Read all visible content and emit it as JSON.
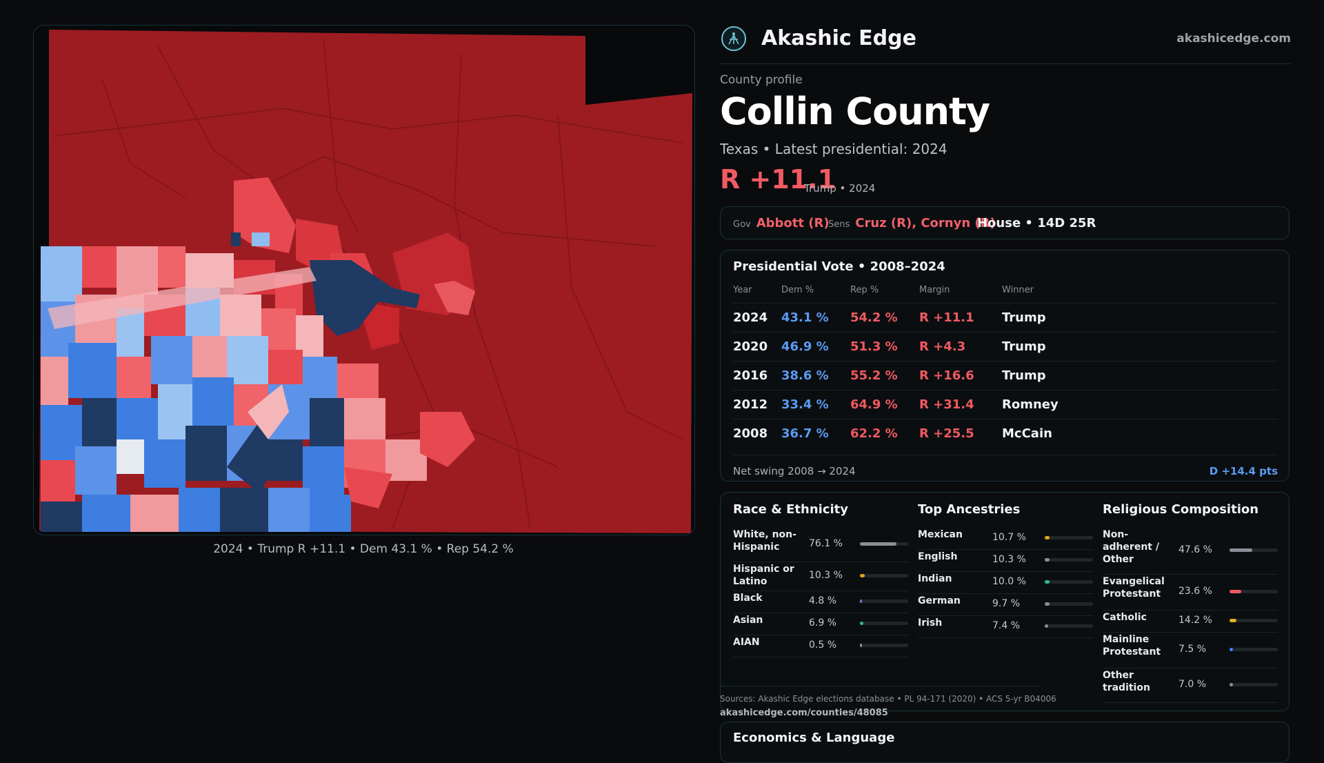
{
  "brand": {
    "name": "Akashic Edge",
    "site": "akashicedge.com"
  },
  "profile": {
    "label": "County profile",
    "name": "Collin County",
    "subtitle": "Texas • Latest presidential: 2024",
    "margin": "R +11.1",
    "margin_note": "Trump • 2024"
  },
  "officials": {
    "gov_label": "Gov",
    "gov": "Abbott (R)",
    "sens_label": "Sens",
    "sens": "Cruz (R), Cornyn (R)",
    "house": "House • 14D 25R"
  },
  "map": {
    "caption": "2024 • Trump R +11.1 • Dem 43.1 % • Rep 54.2 %"
  },
  "presidential": {
    "title": "Presidential Vote • 2008–2024",
    "headers": {
      "year": "Year",
      "dem": "Dem %",
      "rep": "Rep %",
      "margin": "Margin",
      "winner": "Winner"
    },
    "rows": [
      {
        "year": "2024",
        "dem": "43.1 %",
        "rep": "54.2 %",
        "margin": "R +11.1",
        "winner": "Trump"
      },
      {
        "year": "2020",
        "dem": "46.9 %",
        "rep": "51.3 %",
        "margin": "R +4.3",
        "winner": "Trump"
      },
      {
        "year": "2016",
        "dem": "38.6 %",
        "rep": "55.2 %",
        "margin": "R +16.6",
        "winner": "Trump"
      },
      {
        "year": "2012",
        "dem": "33.4 %",
        "rep": "64.9 %",
        "margin": "R +31.4",
        "winner": "Romney"
      },
      {
        "year": "2008",
        "dem": "36.7 %",
        "rep": "62.2 %",
        "margin": "R +25.5",
        "winner": "McCain"
      }
    ],
    "swing_label": "Net swing 2008 → 2024",
    "swing_value": "D +14.4 pts"
  },
  "demographics": {
    "race": {
      "title": "Race & Ethnicity",
      "items": [
        {
          "label": "White, non-Hispanic",
          "value": "76.1 %",
          "share": 0.761,
          "color": "#8a8f98"
        },
        {
          "label": "Hispanic or Latino",
          "value": "10.3 %",
          "share": 0.103,
          "color": "#e2a21a"
        },
        {
          "label": "Black",
          "value": "4.8 %",
          "share": 0.048,
          "color": "#8d6be0"
        },
        {
          "label": "Asian",
          "value": "6.9 %",
          "share": 0.069,
          "color": "#2fbf86"
        },
        {
          "label": "AIAN",
          "value": "0.5 %",
          "share": 0.005,
          "color": "#8a8f98"
        }
      ]
    },
    "ancestry": {
      "title": "Top Ancestries",
      "items": [
        {
          "label": "Mexican",
          "value": "10.7 %",
          "share": 0.107,
          "color": "#e2a21a"
        },
        {
          "label": "English",
          "value": "10.3 %",
          "share": 0.103,
          "color": "#8a8f98"
        },
        {
          "label": "Indian",
          "value": "10.0 %",
          "share": 0.1,
          "color": "#2fbf86"
        },
        {
          "label": "German",
          "value": "9.7 %",
          "share": 0.097,
          "color": "#8a8f98"
        },
        {
          "label": "Irish",
          "value": "7.4 %",
          "share": 0.074,
          "color": "#8a8f98"
        }
      ]
    },
    "religion": {
      "title": "Religious Composition",
      "items": [
        {
          "label": "Non-adherent / Other",
          "value": "47.6 %",
          "share": 0.476,
          "color": "#8a8f98"
        },
        {
          "label": "Evangelical Protestant",
          "value": "23.6 %",
          "share": 0.236,
          "color": "#f05a62"
        },
        {
          "label": "Catholic",
          "value": "14.2 %",
          "share": 0.142,
          "color": "#e2b21a"
        },
        {
          "label": "Mainline Protestant",
          "value": "7.5 %",
          "share": 0.075,
          "color": "#3b82f6"
        },
        {
          "label": "Other tradition",
          "value": "7.0 %",
          "share": 0.07,
          "color": "#8a8f98"
        }
      ]
    }
  },
  "sources": "Sources: Akashic Edge elections database • PL 94-171 (2020) • ACS 5-yr B04006",
  "sources_url": "akashicedge.com/counties/48085",
  "economics": {
    "title": "Economics & Language"
  },
  "colors": {
    "rep": "#f05a62",
    "dem": "#5b9bf2",
    "accent": "#6fc3d6"
  }
}
